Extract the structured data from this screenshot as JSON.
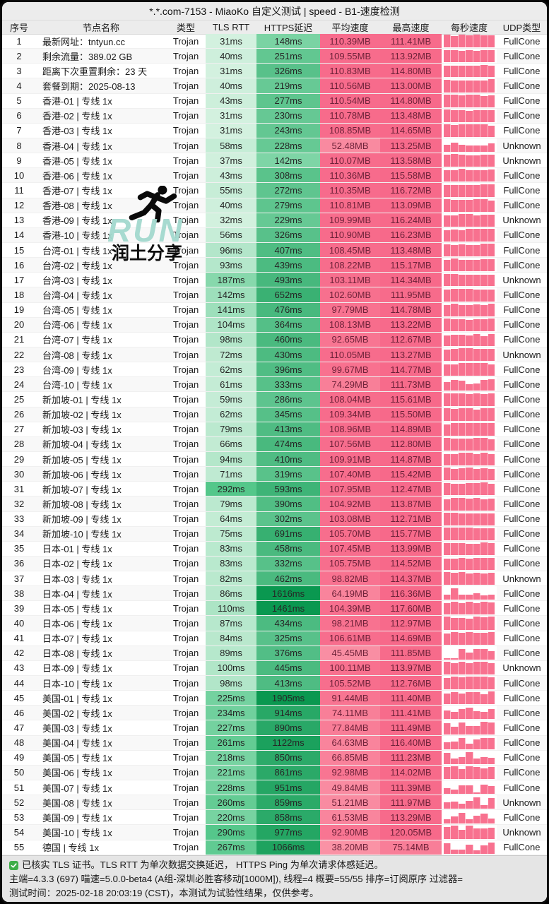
{
  "title": "*.*.com-7153 - MiaoKo 自定义测试 | speed - B1-速度检测",
  "columns": [
    "序号",
    "节点名称",
    "类型",
    "TLS RTT",
    "HTTPS延迟",
    "平均速度",
    "最高速度",
    "每秒速度",
    "UDP类型"
  ],
  "rows": [
    {
      "no": "1",
      "name": "最新网址：tntyun.cc",
      "type": "Trojan",
      "tls": "31ms",
      "https": "148ms",
      "avg": "110.39MB",
      "max": "111.41MB",
      "udp": "FullCone"
    },
    {
      "no": "2",
      "name": "剩余流量：389.02 GB",
      "type": "Trojan",
      "tls": "40ms",
      "https": "251ms",
      "avg": "109.55MB",
      "max": "113.92MB",
      "udp": "FullCone"
    },
    {
      "no": "3",
      "name": "距离下次重置剩余：23 天",
      "type": "Trojan",
      "tls": "31ms",
      "https": "326ms",
      "avg": "110.83MB",
      "max": "114.80MB",
      "udp": "FullCone"
    },
    {
      "no": "4",
      "name": "套餐到期：2025-08-13",
      "type": "Trojan",
      "tls": "40ms",
      "https": "219ms",
      "avg": "110.56MB",
      "max": "113.00MB",
      "udp": "FullCone"
    },
    {
      "no": "5",
      "name": "香港-01 | 专线 1x",
      "type": "Trojan",
      "tls": "43ms",
      "https": "277ms",
      "avg": "110.54MB",
      "max": "114.80MB",
      "udp": "FullCone"
    },
    {
      "no": "6",
      "name": "香港-02 | 专线 1x",
      "type": "Trojan",
      "tls": "31ms",
      "https": "230ms",
      "avg": "110.78MB",
      "max": "113.48MB",
      "udp": "FullCone"
    },
    {
      "no": "7",
      "name": "香港-03 | 专线 1x",
      "type": "Trojan",
      "tls": "31ms",
      "https": "243ms",
      "avg": "108.85MB",
      "max": "114.65MB",
      "udp": "FullCone"
    },
    {
      "no": "8",
      "name": "香港-04 | 专线 1x",
      "type": "Trojan",
      "tls": "58ms",
      "https": "228ms",
      "avg": "52.48MB",
      "max": "113.25MB",
      "udp": "Unknown"
    },
    {
      "no": "9",
      "name": "香港-05 | 专线 1x",
      "type": "Trojan",
      "tls": "37ms",
      "https": "142ms",
      "avg": "110.07MB",
      "max": "113.58MB",
      "udp": "Unknown"
    },
    {
      "no": "10",
      "name": "香港-06 | 专线 1x",
      "type": "Trojan",
      "tls": "43ms",
      "https": "308ms",
      "avg": "110.36MB",
      "max": "115.58MB",
      "udp": "FullCone"
    },
    {
      "no": "11",
      "name": "香港-07 | 专线 1x",
      "type": "Trojan",
      "tls": "55ms",
      "https": "272ms",
      "avg": "110.35MB",
      "max": "116.72MB",
      "udp": "FullCone"
    },
    {
      "no": "12",
      "name": "香港-08 | 专线 1x",
      "type": "Trojan",
      "tls": "40ms",
      "https": "279ms",
      "avg": "110.81MB",
      "max": "113.09MB",
      "udp": "FullCone"
    },
    {
      "no": "13",
      "name": "香港-09 | 专线 1x",
      "type": "Trojan",
      "tls": "32ms",
      "https": "229ms",
      "avg": "109.99MB",
      "max": "116.24MB",
      "udp": "Unknown"
    },
    {
      "no": "14",
      "name": "香港-10 | 专线 1x",
      "type": "Trojan",
      "tls": "56ms",
      "https": "326ms",
      "avg": "110.90MB",
      "max": "116.23MB",
      "udp": "FullCone"
    },
    {
      "no": "15",
      "name": "台湾-01 | 专线 1x",
      "type": "Trojan",
      "tls": "96ms",
      "https": "407ms",
      "avg": "108.45MB",
      "max": "113.48MB",
      "udp": "FullCone"
    },
    {
      "no": "16",
      "name": "台湾-02 | 专线 1x",
      "type": "Trojan",
      "tls": "93ms",
      "https": "439ms",
      "avg": "108.22MB",
      "max": "115.17MB",
      "udp": "FullCone"
    },
    {
      "no": "17",
      "name": "台湾-03 | 专线 1x",
      "type": "Trojan",
      "tls": "187ms",
      "https": "493ms",
      "avg": "103.11MB",
      "max": "114.34MB",
      "udp": "Unknown"
    },
    {
      "no": "18",
      "name": "台湾-04 | 专线 1x",
      "type": "Trojan",
      "tls": "142ms",
      "https": "652ms",
      "avg": "102.60MB",
      "max": "111.95MB",
      "udp": "FullCone"
    },
    {
      "no": "19",
      "name": "台湾-05 | 专线 1x",
      "type": "Trojan",
      "tls": "141ms",
      "https": "476ms",
      "avg": "97.79MB",
      "max": "114.78MB",
      "udp": "FullCone"
    },
    {
      "no": "20",
      "name": "台湾-06 | 专线 1x",
      "type": "Trojan",
      "tls": "104ms",
      "https": "364ms",
      "avg": "108.13MB",
      "max": "113.22MB",
      "udp": "FullCone"
    },
    {
      "no": "21",
      "name": "台湾-07 | 专线 1x",
      "type": "Trojan",
      "tls": "98ms",
      "https": "460ms",
      "avg": "92.65MB",
      "max": "112.67MB",
      "udp": "FullCone"
    },
    {
      "no": "22",
      "name": "台湾-08 | 专线 1x",
      "type": "Trojan",
      "tls": "72ms",
      "https": "430ms",
      "avg": "110.05MB",
      "max": "113.27MB",
      "udp": "Unknown"
    },
    {
      "no": "23",
      "name": "台湾-09 | 专线 1x",
      "type": "Trojan",
      "tls": "62ms",
      "https": "396ms",
      "avg": "99.67MB",
      "max": "114.77MB",
      "udp": "FullCone"
    },
    {
      "no": "24",
      "name": "台湾-10 | 专线 1x",
      "type": "Trojan",
      "tls": "61ms",
      "https": "333ms",
      "avg": "74.29MB",
      "max": "111.73MB",
      "udp": "FullCone"
    },
    {
      "no": "25",
      "name": "新加坡-01 | 专线 1x",
      "type": "Trojan",
      "tls": "59ms",
      "https": "286ms",
      "avg": "108.04MB",
      "max": "115.61MB",
      "udp": "FullCone"
    },
    {
      "no": "26",
      "name": "新加坡-02 | 专线 1x",
      "type": "Trojan",
      "tls": "62ms",
      "https": "345ms",
      "avg": "109.34MB",
      "max": "115.50MB",
      "udp": "FullCone"
    },
    {
      "no": "27",
      "name": "新加坡-03 | 专线 1x",
      "type": "Trojan",
      "tls": "79ms",
      "https": "413ms",
      "avg": "108.96MB",
      "max": "114.89MB",
      "udp": "FullCone"
    },
    {
      "no": "28",
      "name": "新加坡-04 | 专线 1x",
      "type": "Trojan",
      "tls": "66ms",
      "https": "474ms",
      "avg": "107.56MB",
      "max": "112.80MB",
      "udp": "FullCone"
    },
    {
      "no": "29",
      "name": "新加坡-05 | 专线 1x",
      "type": "Trojan",
      "tls": "94ms",
      "https": "410ms",
      "avg": "109.91MB",
      "max": "114.87MB",
      "udp": "FullCone"
    },
    {
      "no": "30",
      "name": "新加坡-06 | 专线 1x",
      "type": "Trojan",
      "tls": "71ms",
      "https": "319ms",
      "avg": "107.40MB",
      "max": "115.42MB",
      "udp": "FullCone"
    },
    {
      "no": "31",
      "name": "新加坡-07 | 专线 1x",
      "type": "Trojan",
      "tls": "292ms",
      "https": "593ms",
      "avg": "107.95MB",
      "max": "112.47MB",
      "udp": "FullCone"
    },
    {
      "no": "32",
      "name": "新加坡-08 | 专线 1x",
      "type": "Trojan",
      "tls": "79ms",
      "https": "390ms",
      "avg": "104.92MB",
      "max": "113.87MB",
      "udp": "FullCone"
    },
    {
      "no": "33",
      "name": "新加坡-09 | 专线 1x",
      "type": "Trojan",
      "tls": "64ms",
      "https": "302ms",
      "avg": "103.08MB",
      "max": "112.71MB",
      "udp": "FullCone"
    },
    {
      "no": "34",
      "name": "新加坡-10 | 专线 1x",
      "type": "Trojan",
      "tls": "75ms",
      "https": "691ms",
      "avg": "105.70MB",
      "max": "115.77MB",
      "udp": "FullCone"
    },
    {
      "no": "35",
      "name": "日本-01 | 专线 1x",
      "type": "Trojan",
      "tls": "83ms",
      "https": "458ms",
      "avg": "107.45MB",
      "max": "113.99MB",
      "udp": "FullCone"
    },
    {
      "no": "36",
      "name": "日本-02 | 专线 1x",
      "type": "Trojan",
      "tls": "83ms",
      "https": "332ms",
      "avg": "105.75MB",
      "max": "114.52MB",
      "udp": "FullCone"
    },
    {
      "no": "37",
      "name": "日本-03 | 专线 1x",
      "type": "Trojan",
      "tls": "82ms",
      "https": "462ms",
      "avg": "98.82MB",
      "max": "114.37MB",
      "udp": "Unknown"
    },
    {
      "no": "38",
      "name": "日本-04 | 专线 1x",
      "type": "Trojan",
      "tls": "86ms",
      "https": "1616ms",
      "avg": "64.19MB",
      "max": "116.36MB",
      "udp": "FullCone"
    },
    {
      "no": "39",
      "name": "日本-05 | 专线 1x",
      "type": "Trojan",
      "tls": "110ms",
      "https": "1461ms",
      "avg": "104.39MB",
      "max": "117.60MB",
      "udp": "FullCone"
    },
    {
      "no": "40",
      "name": "日本-06 | 专线 1x",
      "type": "Trojan",
      "tls": "87ms",
      "https": "434ms",
      "avg": "98.21MB",
      "max": "112.97MB",
      "udp": "FullCone"
    },
    {
      "no": "41",
      "name": "日本-07 | 专线 1x",
      "type": "Trojan",
      "tls": "84ms",
      "https": "325ms",
      "avg": "106.61MB",
      "max": "114.69MB",
      "udp": "FullCone"
    },
    {
      "no": "42",
      "name": "日本-08 | 专线 1x",
      "type": "Trojan",
      "tls": "89ms",
      "https": "376ms",
      "avg": "45.45MB",
      "max": "111.85MB",
      "udp": "FullCone"
    },
    {
      "no": "43",
      "name": "日本-09 | 专线 1x",
      "type": "Trojan",
      "tls": "100ms",
      "https": "445ms",
      "avg": "100.11MB",
      "max": "113.97MB",
      "udp": "Unknown"
    },
    {
      "no": "44",
      "name": "日本-10 | 专线 1x",
      "type": "Trojan",
      "tls": "98ms",
      "https": "413ms",
      "avg": "105.52MB",
      "max": "112.76MB",
      "udp": "FullCone"
    },
    {
      "no": "45",
      "name": "美国-01 | 专线 1x",
      "type": "Trojan",
      "tls": "225ms",
      "https": "1905ms",
      "avg": "91.44MB",
      "max": "111.40MB",
      "udp": "FullCone"
    },
    {
      "no": "46",
      "name": "美国-02 | 专线 1x",
      "type": "Trojan",
      "tls": "234ms",
      "https": "914ms",
      "avg": "74.11MB",
      "max": "111.41MB",
      "udp": "FullCone"
    },
    {
      "no": "47",
      "name": "美国-03 | 专线 1x",
      "type": "Trojan",
      "tls": "227ms",
      "https": "890ms",
      "avg": "77.84MB",
      "max": "111.49MB",
      "udp": "FullCone"
    },
    {
      "no": "48",
      "name": "美国-04 | 专线 1x",
      "type": "Trojan",
      "tls": "261ms",
      "https": "1122ms",
      "avg": "64.63MB",
      "max": "116.40MB",
      "udp": "FullCone"
    },
    {
      "no": "49",
      "name": "美国-05 | 专线 1x",
      "type": "Trojan",
      "tls": "218ms",
      "https": "850ms",
      "avg": "66.85MB",
      "max": "111.23MB",
      "udp": "FullCone"
    },
    {
      "no": "50",
      "name": "美国-06 | 专线 1x",
      "type": "Trojan",
      "tls": "221ms",
      "https": "861ms",
      "avg": "92.98MB",
      "max": "114.02MB",
      "udp": "FullCone"
    },
    {
      "no": "51",
      "name": "美国-07 | 专线 1x",
      "type": "Trojan",
      "tls": "228ms",
      "https": "951ms",
      "avg": "49.84MB",
      "max": "111.39MB",
      "udp": "FullCone"
    },
    {
      "no": "52",
      "name": "美国-08 | 专线 1x",
      "type": "Trojan",
      "tls": "260ms",
      "https": "859ms",
      "avg": "51.21MB",
      "max": "111.97MB",
      "udp": "Unknown"
    },
    {
      "no": "53",
      "name": "美国-09 | 专线 1x",
      "type": "Trojan",
      "tls": "220ms",
      "https": "858ms",
      "avg": "61.53MB",
      "max": "113.29MB",
      "udp": "FullCone"
    },
    {
      "no": "54",
      "name": "美国-10 | 专线 1x",
      "type": "Trojan",
      "tls": "290ms",
      "https": "977ms",
      "avg": "92.90MB",
      "max": "120.05MB",
      "udp": "Unknown"
    },
    {
      "no": "55",
      "name": "德国 | 专线 1x",
      "type": "Trojan",
      "tls": "267ms",
      "https": "1066ms",
      "avg": "38.20MB",
      "max": "75.14MB",
      "udp": "FullCone"
    }
  ],
  "watermark": {
    "run_text": "RUN",
    "share_text": "润土分享"
  },
  "footer": {
    "line1": "已核实 TLS 证书。TLS RTT 为单次数据交换延迟， HTTPS Ping 为单次请求体感延迟。",
    "line2": "主端=4.3.3 (697) 喵速=5.0.0-beta4 (A组-深圳必胜客移动[1000M]), 线程=4 概要=55/55 排序=订阅原序 过滤器=",
    "line3": "测试时间：2025-02-18 20:03:19 (CST)，本测试为试验性结果，仅供参考。"
  },
  "colors": {
    "pink": "#f8718f",
    "pink_light": "#fa91a8",
    "green_light": "#d3f1df",
    "green_dark": "#0a9850",
    "header_bg": "#ececec",
    "footer_bg": "#e5e5e5",
    "check_green": "#3fae49",
    "speed_text": "#6e2239",
    "run_teal": "#a3d9ce"
  }
}
